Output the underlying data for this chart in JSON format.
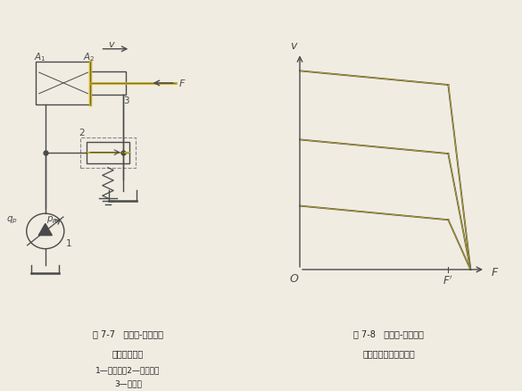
{
  "bg_color": "#f0ece2",
  "left_panel": {
    "title_line1": "图 7-7   变量泵-液压缸式",
    "title_line2": "容积调速回路",
    "caption": "1—液压泵；2—溢流阀；",
    "caption2": "3—液压缸"
  },
  "right_panel": {
    "title_line1": "图 7-8   变量泵-液压缸式",
    "title_line2": "容积调速回路特性曲线"
  },
  "line_color": "#4a4a4a",
  "yellow_color": "#c8b020",
  "dash_color": "#888888",
  "text_color": "#222222"
}
